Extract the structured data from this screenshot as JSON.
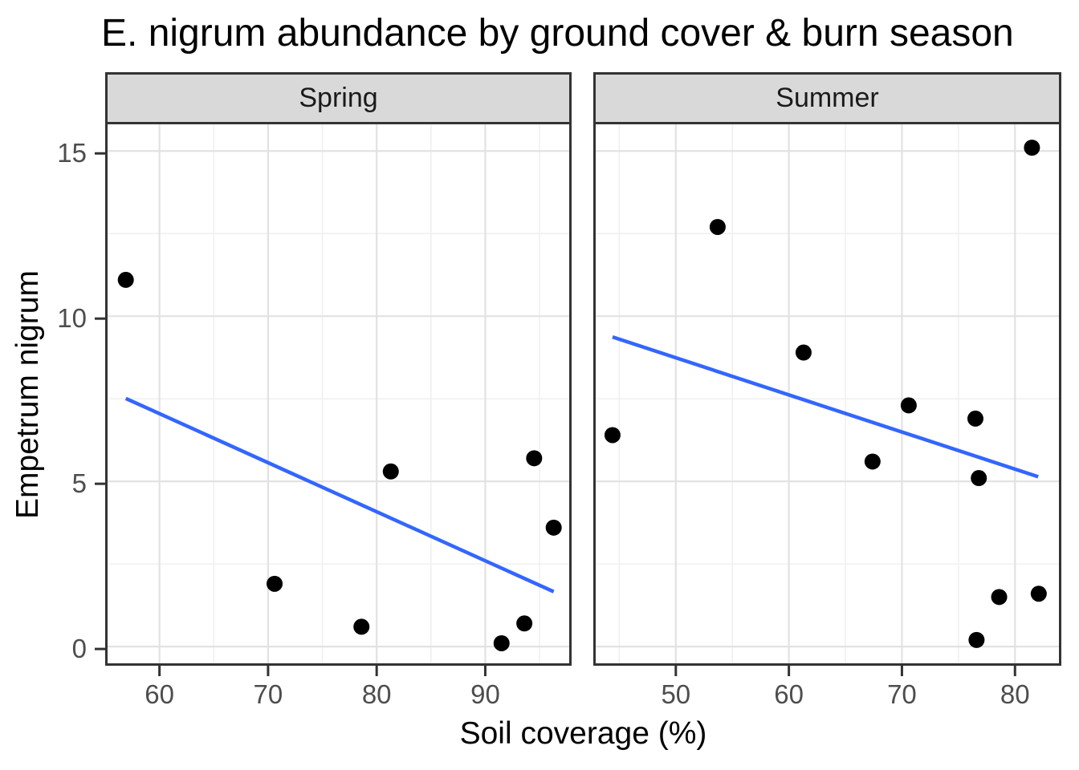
{
  "page": {
    "title": "E. nigrum abundance by ground cover & burn season"
  },
  "chart_data": {
    "type": "scatter",
    "title": "E. nigrum abundance by ground cover & burn season",
    "xlabel": "Soil coverage (%)",
    "ylabel": "Empetrum nigrum",
    "grid": "on",
    "legend": "none",
    "y_axis": {
      "ticks": [
        0,
        5,
        10,
        15
      ],
      "minor": [
        2.5,
        7.5,
        12.5
      ],
      "lim": [
        -0.58,
        15.88
      ]
    },
    "facets": [
      {
        "label": "Spring",
        "xlim": [
          55.0,
          97.95
        ],
        "x_ticks": [
          60,
          70,
          80,
          90
        ],
        "x_minor": [
          65,
          75,
          85,
          95
        ],
        "points": [
          [
            56.9,
            11.1
          ],
          [
            70.6,
            1.9
          ],
          [
            78.6,
            0.6
          ],
          [
            81.3,
            5.3
          ],
          [
            91.5,
            0.1
          ],
          [
            93.6,
            0.7
          ],
          [
            94.5,
            5.7
          ],
          [
            96.3,
            3.6
          ]
        ],
        "trend": {
          "x": [
            56.9,
            96.3
          ],
          "y": [
            7.51,
            1.66
          ]
        }
      },
      {
        "label": "Summer",
        "xlim": [
          42.7,
          84.1
        ],
        "x_ticks": [
          50,
          60,
          70,
          80
        ],
        "x_minor": [
          45,
          55,
          65,
          75
        ],
        "points": [
          [
            44.4,
            6.4
          ],
          [
            53.7,
            12.7
          ],
          [
            61.3,
            8.9
          ],
          [
            67.4,
            5.6
          ],
          [
            70.6,
            7.3
          ],
          [
            76.5,
            6.9
          ],
          [
            76.8,
            5.1
          ],
          [
            76.6,
            0.2
          ],
          [
            78.6,
            1.5
          ],
          [
            81.5,
            15.1
          ],
          [
            82.1,
            1.6
          ]
        ],
        "trend": {
          "x": [
            44.4,
            82.05
          ],
          "y": [
            9.37,
            5.14
          ]
        }
      }
    ],
    "colors": {
      "point": "#000000",
      "trend": "#3366FF",
      "strip_bg": "#D9D9D9",
      "border": "#333333",
      "grid_major": "#E2E2E2",
      "grid_minor": "#F0F0F0",
      "tick_label": "#4D4D4D"
    }
  }
}
